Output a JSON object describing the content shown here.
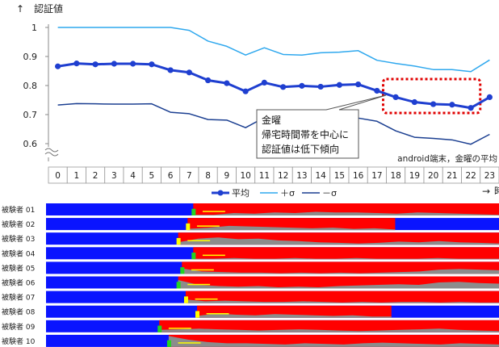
{
  "chart_data": [
    {
      "type": "line",
      "ylabel": "認証値",
      "ylabel_arrow": "↑",
      "xlabel": "時刻",
      "xlabel_arrow": "→",
      "subtitle": "android端末，金曜の平均",
      "annotation": [
        "金曜",
        "帰宅時間帯を中心に",
        "認証値は低下傾向"
      ],
      "ylim": [
        0.55,
        1.0
      ],
      "y_ticks": [
        "1",
        "0.9",
        "0.8",
        "0.7",
        "0.6"
      ],
      "x": [
        "0",
        "1",
        "2",
        "3",
        "4",
        "5",
        "6",
        "7",
        "8",
        "9",
        "10",
        "11",
        "12",
        "13",
        "14",
        "15",
        "16",
        "17",
        "18",
        "19",
        "20",
        "21",
        "22",
        "23"
      ],
      "series": [
        {
          "name": "平均",
          "color": "#1f3fd0",
          "values": [
            0.866,
            0.876,
            0.873,
            0.875,
            0.875,
            0.873,
            0.853,
            0.845,
            0.818,
            0.808,
            0.78,
            0.81,
            0.795,
            0.799,
            0.796,
            0.802,
            0.804,
            0.782,
            0.76,
            0.743,
            0.736,
            0.734,
            0.723,
            0.76
          ]
        },
        {
          "name": "＋σ",
          "color": "#2fa8ee",
          "values": [
            1.0,
            1.0,
            1.0,
            1.0,
            1.0,
            1.0,
            1.0,
            0.99,
            0.953,
            0.935,
            0.905,
            0.93,
            0.907,
            0.905,
            0.913,
            0.915,
            0.92,
            0.887,
            0.876,
            0.867,
            0.855,
            0.855,
            0.848,
            0.888
          ]
        },
        {
          "name": "－σ",
          "color": "#1b3f91",
          "values": [
            0.733,
            0.738,
            0.737,
            0.736,
            0.736,
            0.737,
            0.708,
            0.703,
            0.683,
            0.681,
            0.655,
            0.69,
            0.683,
            0.693,
            0.68,
            0.689,
            0.688,
            0.677,
            0.644,
            0.622,
            0.618,
            0.613,
            0.598,
            0.632
          ]
        }
      ],
      "highlight_hours": [
        18,
        22
      ]
    },
    {
      "type": "area",
      "x_range": [
        0,
        24
      ],
      "category_colors": {
        "blue": "#0a14ff",
        "red": "#ff0000",
        "gray": "#8c8c8c",
        "green": "#22d422",
        "yellow": "#ffff00"
      },
      "rows": [
        {
          "label": "被験者 01",
          "start": 7.8,
          "end": 24,
          "gray": [
            0.05,
            0.05,
            0.2,
            0.15,
            0.25,
            0.2,
            0.3,
            0.25,
            0.25,
            0.2,
            0.15,
            0.25,
            0.2,
            0.15,
            0.1,
            0.05
          ],
          "accent": "green"
        },
        {
          "label": "被験者 02",
          "start": 7.5,
          "end": 18.5,
          "gray": [
            0.1,
            0.2,
            0.35,
            0.3,
            0.25,
            0.2,
            0.15,
            0.2,
            0.1,
            0.15,
            0.05
          ],
          "accent": "yellow"
        },
        {
          "label": "被験者 03",
          "start": 7.0,
          "end": 24,
          "gray": [
            0.2,
            0.5,
            0.6,
            0.45,
            0.5,
            0.35,
            0.3,
            0.2,
            0.15,
            0.1,
            0.15,
            0.25,
            0.2,
            0.3,
            0.2,
            0.15,
            0.1
          ],
          "accent": "yellow"
        },
        {
          "label": "被験者 04",
          "start": 7.8,
          "end": 24,
          "gray": [
            0.05,
            0.05,
            0.1,
            0.05,
            0.05,
            0.1,
            0.05,
            0.05,
            0.1,
            0.05,
            0.05,
            0.05,
            0.1,
            0.05,
            0.05,
            0.05
          ],
          "accent": "green"
        },
        {
          "label": "被験者 05",
          "start": 7.2,
          "end": 24,
          "gray": [
            0.45,
            0.2,
            0.15,
            0.1,
            0.1,
            0.05,
            0.1,
            0.05,
            0.1,
            0.05,
            0.1,
            0.15,
            0.2,
            0.35,
            0.4,
            0.35,
            0.3
          ],
          "accent": "green"
        },
        {
          "label": "被験者 06",
          "start": 7.0,
          "end": 24,
          "gray": [
            0.7,
            0.3,
            0.2,
            0.15,
            0.2,
            0.1,
            0.15,
            0.1,
            0.2,
            0.25,
            0.3,
            0.35,
            0.3,
            0.5,
            0.55,
            0.45,
            0.4
          ],
          "accent": "green"
        },
        {
          "label": "被験者 07",
          "start": 7.4,
          "end": 24,
          "gray": [
            0.3,
            0.15,
            0.2,
            0.15,
            0.1,
            0.1,
            0.15,
            0.1,
            0.05,
            0.1,
            0.05,
            0.1,
            0.1,
            0.05,
            0.1,
            0.05,
            0.05
          ],
          "accent": "yellow"
        },
        {
          "label": "被験者 08",
          "start": 8.0,
          "end": 18.3,
          "gray": [
            0.15,
            0.35,
            0.25,
            0.2,
            0.3,
            0.25,
            0.2,
            0.15,
            0.2,
            0.1,
            0.1
          ],
          "accent": "yellow"
        },
        {
          "label": "被験者 09",
          "start": 6.0,
          "end": 24,
          "gray": [
            0.2,
            0.25,
            0.3,
            0.25,
            0.2,
            0.15,
            0.2,
            0.25,
            0.2,
            0.15,
            0.1,
            0.15,
            0.2,
            0.25,
            0.3,
            0.2,
            0.15,
            0.1
          ],
          "accent": "green"
        },
        {
          "label": "被験者 10",
          "start": 6.5,
          "end": 24,
          "gray": [
            0.9,
            0.6,
            0.4,
            0.3,
            0.3,
            0.25,
            0.2,
            0.3,
            0.25,
            0.2,
            0.3,
            0.35,
            0.3,
            0.25,
            0.2,
            0.3,
            0.25,
            0.2
          ],
          "accent": "green"
        }
      ]
    }
  ]
}
